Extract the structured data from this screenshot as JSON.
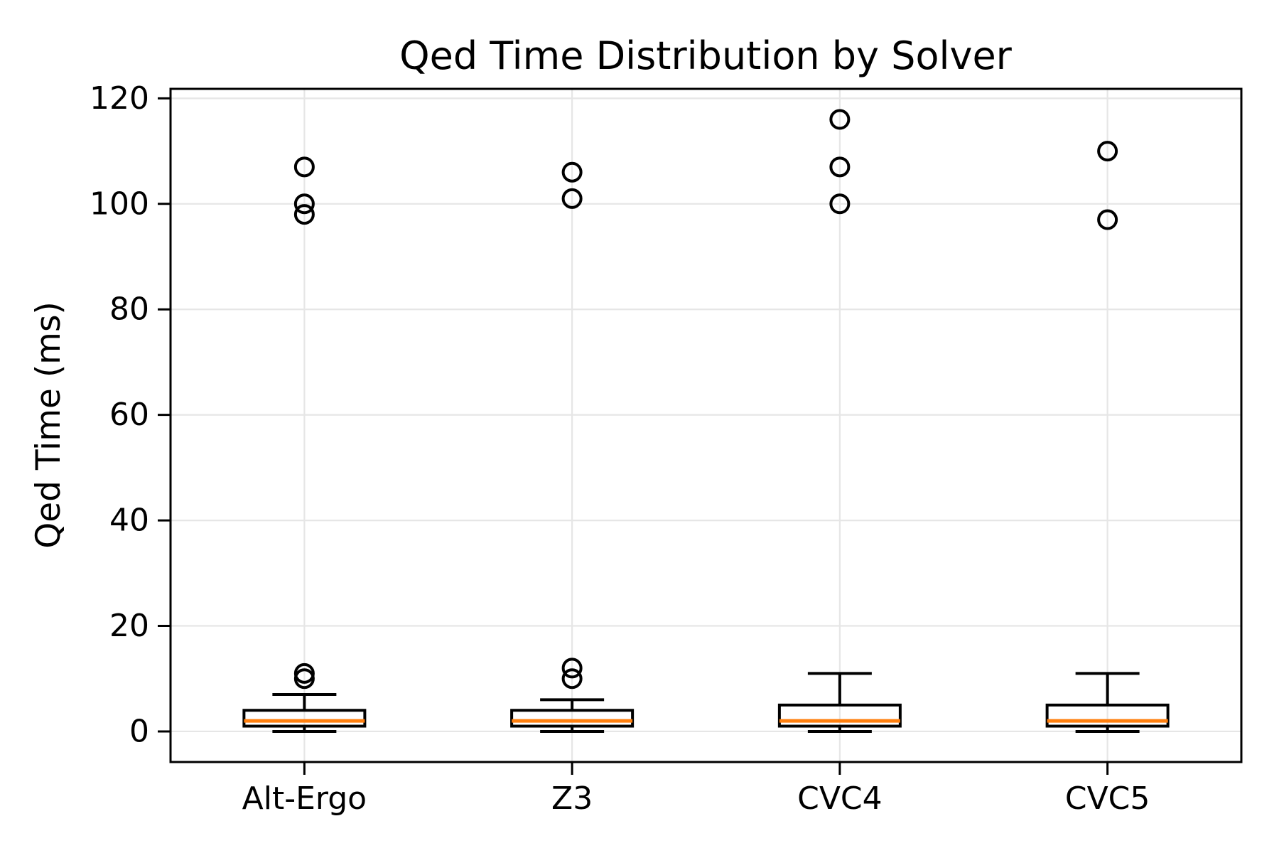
{
  "chart_data": {
    "type": "boxplot",
    "title": "Qed Time Distribution by Solver",
    "xlabel": "",
    "ylabel": "Qed Time (ms)",
    "categories": [
      "Alt-Ergo",
      "Z3",
      "CVC4",
      "CVC5"
    ],
    "yticks": [
      0,
      20,
      40,
      60,
      80,
      100,
      120
    ],
    "ytick_labels": [
      "0",
      "20",
      "40",
      "60",
      "80",
      "100",
      "120"
    ],
    "ylim": [
      -5.8,
      121.8
    ],
    "grid": true,
    "legend": "none",
    "series": [
      {
        "name": "Alt-Ergo",
        "whisker_low": 0,
        "q1": 1,
        "median": 2,
        "q3": 4,
        "whisker_high": 7,
        "outliers": [
          10,
          11,
          98,
          100,
          107
        ]
      },
      {
        "name": "Z3",
        "whisker_low": 0,
        "q1": 1,
        "median": 2,
        "q3": 4,
        "whisker_high": 6,
        "outliers": [
          10,
          12,
          101,
          106
        ]
      },
      {
        "name": "CVC4",
        "whisker_low": 0,
        "q1": 1,
        "median": 2,
        "q3": 5,
        "whisker_high": 11,
        "outliers": [
          100,
          107,
          116
        ]
      },
      {
        "name": "CVC5",
        "whisker_low": 0,
        "q1": 1,
        "median": 2,
        "q3": 5,
        "whisker_high": 11,
        "outliers": [
          97,
          110
        ]
      }
    ],
    "colors": {
      "box_edge": "#000000",
      "median": "#ff7f0e",
      "grid": "#e6e6e6",
      "background": "#ffffff",
      "text": "#000000"
    }
  }
}
